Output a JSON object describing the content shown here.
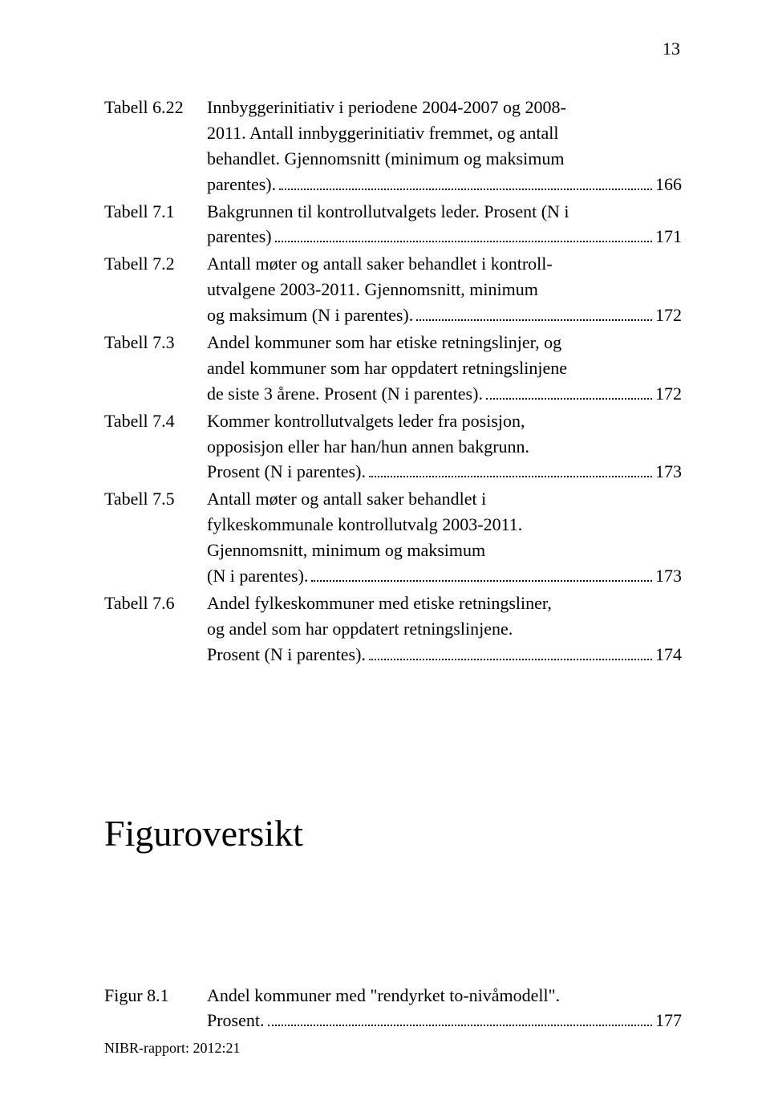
{
  "page_number": "13",
  "toc_entries": [
    {
      "label": "Tabell 6.22",
      "lines": [
        "Innbyggerinitiativ i periodene 2004-2007 og 2008-",
        "2011. Antall innbyggerinitiativ fremmet, og antall",
        "behandlet. Gjennomsnitt (minimum og maksimum"
      ],
      "last_text": " parentes).",
      "page": "166"
    },
    {
      "label": "Tabell 7.1",
      "lines": [
        "Bakgrunnen til kontrollutvalgets leder. Prosent (N i"
      ],
      "last_text": "parentes)",
      "page": "171"
    },
    {
      "label": "Tabell 7.2",
      "lines": [
        "Antall møter og antall saker behandlet i kontroll-",
        "utvalgene 2003-2011. Gjennomsnitt, minimum"
      ],
      "last_text": "og maksimum (N i parentes).",
      "page": "172"
    },
    {
      "label": "Tabell 7.3",
      "lines": [
        "Andel kommuner som har etiske retningslinjer, og",
        "andel kommuner som har oppdatert retningslinjene"
      ],
      "last_text": "de siste 3 årene. Prosent (N i parentes). ",
      "page": "172"
    },
    {
      "label": "Tabell 7.4",
      "lines": [
        "Kommer kontrollutvalgets leder fra posisjon,",
        "opposisjon eller har han/hun annen bakgrunn."
      ],
      "last_text": "Prosent (N i parentes). ",
      "page": "173"
    },
    {
      "label": "Tabell 7.5",
      "lines": [
        "Antall møter og antall saker behandlet i",
        "fylkeskommunale kontrollutvalg 2003-2011.",
        "Gjennomsnitt, minimum og maksimum"
      ],
      "last_text": "(N i parentes).",
      "page": "173"
    },
    {
      "label": "Tabell 7.6",
      "lines": [
        "Andel fylkeskommuner med etiske retningsliner,",
        "og andel som har oppdatert retningslinjene."
      ],
      "last_text": "Prosent (N i parentes). ",
      "page": "174"
    }
  ],
  "section_title": "Figuroversikt",
  "figure_entries": [
    {
      "label": "Figur 8.1",
      "lines": [
        "Andel kommuner med \"rendyrket to-nivåmodell\"."
      ],
      "last_text": "Prosent.",
      "page": "177"
    }
  ],
  "footer": "NIBR-rapport: 2012:21"
}
